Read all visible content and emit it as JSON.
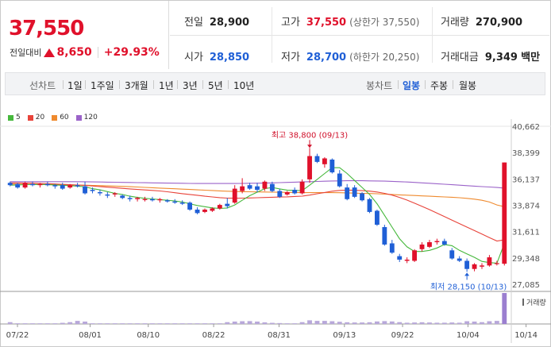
{
  "quote": {
    "price": "37,550",
    "change_label": "전일대비",
    "change_value": "8,650",
    "change_pct": "+29.93%",
    "prev_close_label": "전일",
    "prev_close": "28,900",
    "high_label": "고가",
    "high": "37,550",
    "upper_limit": "(상한가 37,550)",
    "volume_label": "거래량",
    "volume": "270,900",
    "open_label": "시가",
    "open": "28,850",
    "low_label": "저가",
    "low": "28,700",
    "lower_limit": "(하한가 20,250)",
    "value_label": "거래대금",
    "value": "9,349",
    "value_unit": "백만"
  },
  "period_bar": {
    "line_chart": "선차트",
    "ranges": [
      "1일",
      "1주일",
      "3개월",
      "1년",
      "3년",
      "5년",
      "10년"
    ],
    "candle_chart": "봉차트",
    "candle_ranges": [
      "일봉",
      "주봉",
      "월봉"
    ],
    "active_candle": "일봉"
  },
  "colors": {
    "up": "#e0112b",
    "down": "#1f5fd6",
    "ma5": "#46b83c",
    "ma20": "#e8433a",
    "ma60": "#ef8a2e",
    "ma120": "#9b63c9",
    "volume": "#b8a8da",
    "volume_last": "#9b7fd0"
  },
  "chart_data": {
    "type": "candlestick",
    "ylim": [
      27085,
      40662
    ],
    "y_ticks": [
      "40,662",
      "38,399",
      "36,137",
      "33,874",
      "31,611",
      "29,348",
      "27,085"
    ],
    "x_ticks": [
      "07/22",
      "08/01",
      "08/10",
      "08/22",
      "08/31",
      "09/13",
      "09/22",
      "10/04",
      "10/14"
    ],
    "legend": [
      "5",
      "20",
      "60",
      "120"
    ],
    "volume_label": "거래량",
    "annotations": {
      "high": "최고 38,800 (09/13)",
      "low": "최저 28,150 (10/13)"
    },
    "candles": [
      [
        35800,
        35900,
        35500,
        35600
      ],
      [
        35700,
        35800,
        35300,
        35400
      ],
      [
        35400,
        35900,
        35300,
        35800
      ],
      [
        35700,
        35900,
        35500,
        35600
      ],
      [
        35600,
        35800,
        35400,
        35700
      ],
      [
        35700,
        35900,
        35500,
        35600
      ],
      [
        35600,
        35700,
        35300,
        35500
      ],
      [
        35600,
        35800,
        35200,
        35300
      ],
      [
        35400,
        35700,
        35300,
        35600
      ],
      [
        35600,
        35800,
        35400,
        35500
      ],
      [
        35500,
        35900,
        34800,
        34900
      ],
      [
        35200,
        35400,
        34900,
        35100
      ],
      [
        35000,
        35200,
        34700,
        34900
      ],
      [
        34800,
        35000,
        34500,
        34700
      ],
      [
        34800,
        35000,
        34600,
        34900
      ],
      [
        34700,
        34800,
        34400,
        34500
      ],
      [
        34500,
        34700,
        34200,
        34400
      ],
      [
        34400,
        34600,
        34200,
        34500
      ],
      [
        34400,
        34600,
        34200,
        34400
      ],
      [
        34400,
        34600,
        34200,
        34300
      ],
      [
        34300,
        34500,
        34100,
        34400
      ],
      [
        34300,
        34400,
        34100,
        34200
      ],
      [
        34200,
        34400,
        34000,
        34100
      ],
      [
        34100,
        34300,
        33900,
        34000
      ],
      [
        34100,
        34200,
        33400,
        33500
      ],
      [
        33500,
        33700,
        33100,
        33200
      ],
      [
        33300,
        33600,
        33200,
        33500
      ],
      [
        33400,
        33700,
        33300,
        33600
      ],
      [
        33600,
        34000,
        33500,
        33900
      ],
      [
        34000,
        34500,
        33600,
        33800
      ],
      [
        34100,
        35600,
        34000,
        35300
      ],
      [
        35100,
        36200,
        34900,
        35500
      ],
      [
        35600,
        35800,
        35200,
        35300
      ],
      [
        35500,
        35800,
        35000,
        35200
      ],
      [
        35300,
        36000,
        35100,
        35900
      ],
      [
        35700,
        35900,
        35000,
        35100
      ],
      [
        35100,
        35300,
        34500,
        34600
      ],
      [
        34800,
        35100,
        34700,
        35000
      ],
      [
        35200,
        35400,
        34800,
        34900
      ],
      [
        34900,
        36100,
        34800,
        35900
      ],
      [
        36100,
        38800,
        35800,
        38100
      ],
      [
        38100,
        38300,
        37500,
        37600
      ],
      [
        37400,
        38000,
        37100,
        37900
      ],
      [
        37800,
        37900,
        36600,
        36700
      ],
      [
        36600,
        36900,
        35400,
        35500
      ],
      [
        35400,
        35700,
        34300,
        34400
      ],
      [
        35400,
        35600,
        34500,
        34600
      ],
      [
        34900,
        35000,
        34200,
        34300
      ],
      [
        34400,
        34500,
        33200,
        33300
      ],
      [
        33400,
        33500,
        32100,
        32200
      ],
      [
        32000,
        32200,
        30400,
        30500
      ],
      [
        30600,
        30900,
        29700,
        29800
      ],
      [
        29500,
        29700,
        29000,
        29200
      ],
      [
        29100,
        29400,
        28900,
        29200
      ],
      [
        29100,
        30100,
        29000,
        30000
      ],
      [
        30100,
        30700,
        29900,
        30500
      ],
      [
        30300,
        30900,
        30200,
        30700
      ],
      [
        30700,
        31000,
        30500,
        30800
      ],
      [
        30800,
        31000,
        30400,
        30500
      ],
      [
        30000,
        30200,
        29200,
        29300
      ],
      [
        29300,
        29500,
        29000,
        29100
      ],
      [
        29100,
        29300,
        28150,
        28400
      ],
      [
        28400,
        28900,
        28200,
        28800
      ],
      [
        28600,
        28900,
        28400,
        28700
      ],
      [
        28700,
        29600,
        28600,
        29400
      ],
      [
        28900,
        29100,
        28700,
        28900
      ],
      [
        28850,
        37550,
        28700,
        37550
      ]
    ],
    "volumes": [
      16,
      6,
      6,
      6,
      6,
      6,
      6,
      10,
      16,
      27,
      21,
      6,
      6,
      6,
      6,
      6,
      6,
      6,
      6,
      6,
      6,
      6,
      6,
      6,
      6,
      6,
      6,
      6,
      6,
      16,
      21,
      24,
      25,
      21,
      14,
      10,
      8,
      6,
      6,
      16,
      32,
      27,
      27,
      24,
      19,
      15,
      13,
      13,
      15,
      22,
      25,
      22,
      16,
      11,
      13,
      15,
      13,
      11,
      11,
      13,
      11,
      24,
      21,
      16,
      24,
      27,
      270
    ],
    "ma5": [
      35600,
      35620,
      35650,
      35650,
      35660,
      35640,
      35620,
      35590,
      35560,
      35520,
      35460,
      35300,
      35200,
      35050,
      34900,
      34800,
      34650,
      34550,
      34470,
      34420,
      34360,
      34300,
      34250,
      34150,
      34000,
      33850,
      33750,
      33650,
      33600,
      33640,
      33900,
      34300,
      34700,
      35000,
      35300,
      35400,
      35280,
      35180,
      35150,
      35130,
      35600,
      36100,
      36600,
      37100,
      37100,
      36600,
      36000,
      35400,
      34800,
      34000,
      33000,
      32000,
      31000,
      30300,
      29900,
      29900,
      30000,
      30200,
      30500,
      30400,
      30000,
      29700,
      29400,
      29050,
      28950,
      28900,
      30600
    ],
    "ma20": [
      35800,
      35790,
      35780,
      35770,
      35750,
      35730,
      35700,
      35670,
      35640,
      35610,
      35580,
      35530,
      35480,
      35430,
      35380,
      35330,
      35280,
      35230,
      35190,
      35150,
      35100,
      35030,
      34950,
      34870,
      34800,
      34730,
      34650,
      34590,
      34530,
      34490,
      34480,
      34490,
      34500,
      34520,
      34540,
      34560,
      34580,
      34600,
      34630,
      34660,
      34750,
      34860,
      34970,
      35080,
      35150,
      35180,
      35160,
      35130,
      35090,
      35010,
      34900,
      34750,
      34550,
      34320,
      34050,
      33780,
      33500,
      33200,
      32900,
      32600,
      32300,
      32000,
      31700,
      31400,
      31100,
      30800,
      30900
    ],
    "ma60": [
      35700,
      35690,
      35680,
      35670,
      35660,
      35650,
      35640,
      35630,
      35620,
      35610,
      35600,
      35580,
      35560,
      35540,
      35520,
      35500,
      35470,
      35440,
      35410,
      35380,
      35350,
      35320,
      35290,
      35260,
      35230,
      35200,
      35170,
      35140,
      35110,
      35080,
      35060,
      35040,
      35030,
      35020,
      35010,
      35000,
      34990,
      34980,
      34970,
      34960,
      34960,
      34960,
      34960,
      34960,
      34950,
      34940,
      34920,
      34900,
      34880,
      34860,
      34830,
      34800,
      34770,
      34740,
      34710,
      34680,
      34650,
      34620,
      34590,
      34560,
      34520,
      34470,
      34400,
      34300,
      34150,
      33900,
      33750
    ],
    "ma120": [
      35900,
      35900,
      35900,
      35900,
      35900,
      35900,
      35900,
      35900,
      35900,
      35900,
      35890,
      35880,
      35870,
      35860,
      35850,
      35840,
      35830,
      35820,
      35810,
      35800,
      35790,
      35780,
      35770,
      35760,
      35750,
      35740,
      35740,
      35740,
      35740,
      35740,
      35740,
      35750,
      35760,
      35770,
      35780,
      35800,
      35820,
      35840,
      35860,
      35880,
      35900,
      35920,
      35940,
      35960,
      35970,
      35980,
      35980,
      35980,
      35970,
      35960,
      35950,
      35930,
      35900,
      35870,
      35840,
      35800,
      35760,
      35720,
      35680,
      35640,
      35600,
      35560,
      35520,
      35480,
      35440,
      35400,
      35350
    ]
  }
}
